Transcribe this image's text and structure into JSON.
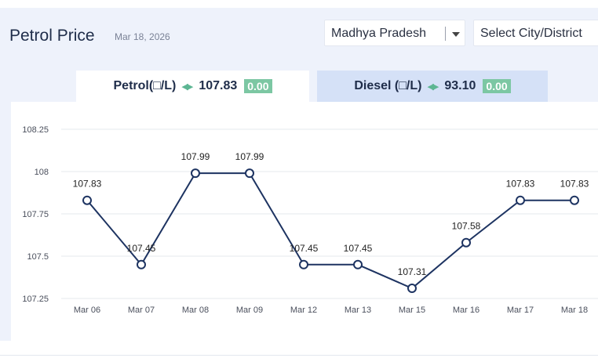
{
  "header": {
    "title": "Petrol Price",
    "date": "Mar 18, 2026"
  },
  "filters": {
    "state": "Madhya Pradesh",
    "city": "Select City/District"
  },
  "tabs": {
    "petrol": {
      "label": "Petrol(□/L)",
      "price": "107.83",
      "change": "0.00"
    },
    "diesel": {
      "label": "Diesel (□/L)",
      "price": "93.10",
      "change": "0.00"
    }
  },
  "colors": {
    "line": "#1d3361",
    "change_badge": "#7cc7a3",
    "active_tab": "#ffffff",
    "inactive_tab": "#d5e1f7"
  },
  "chart_data": {
    "type": "line",
    "title": "",
    "xlabel": "",
    "ylabel": "",
    "categories": [
      "Mar 06",
      "Mar 07",
      "Mar 08",
      "Mar 09",
      "Mar 12",
      "Mar 13",
      "Mar 15",
      "Mar 16",
      "Mar 17",
      "Mar 18"
    ],
    "values": [
      107.83,
      107.45,
      107.99,
      107.99,
      107.45,
      107.45,
      107.31,
      107.58,
      107.83,
      107.83
    ],
    "data_labels": [
      "107.83",
      "107.45",
      "107.99",
      "107.99",
      "107.45",
      "107.45",
      "107.31",
      "107.58",
      "107.83",
      "107.83"
    ],
    "y_ticks": [
      107.25,
      107.5,
      107.75,
      108,
      108.25
    ],
    "y_tick_labels": [
      "107.25",
      "107.5",
      "107.75",
      "108",
      "108.25"
    ],
    "ylim": [
      107.25,
      108.25
    ],
    "grid": true,
    "legend": "none"
  }
}
